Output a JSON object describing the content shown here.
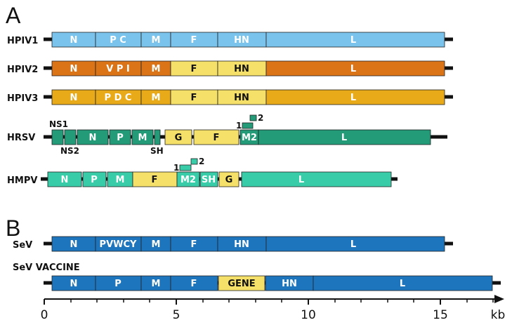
{
  "panels": [
    "A",
    "B"
  ],
  "colors": {
    "hpiv1": "#79c3ec",
    "hpiv2": "#db7417",
    "hpiv3": "#e9aa19",
    "yellow": "#f5e06a",
    "hrsv": "#239a78",
    "hmpv": "#39cca8",
    "sev": "#1c75bd"
  },
  "rows": [
    {
      "id": "hpiv1",
      "label": "HPIV1",
      "genes": [
        "N",
        "P C",
        "M",
        "F",
        "HN",
        "L"
      ]
    },
    {
      "id": "hpiv2",
      "label": "HPIV2",
      "genes": [
        "N",
        "V P I",
        "M",
        "F",
        "HN",
        "L"
      ]
    },
    {
      "id": "hpiv3",
      "label": "HPIV3",
      "genes": [
        "N",
        "P D C",
        "M",
        "F",
        "HN",
        "L"
      ]
    },
    {
      "id": "hrsv",
      "label": "HRSV",
      "genes": [
        "",
        "",
        "N",
        "P",
        "M",
        "",
        "G",
        "F",
        "M2",
        "L"
      ],
      "labels_above": [
        "NS1"
      ],
      "labels_below": [
        "NS2",
        "SH"
      ],
      "m2_orfs": [
        "1",
        "2"
      ]
    },
    {
      "id": "hmpv",
      "label": "HMPV",
      "genes": [
        "N",
        "P",
        "M",
        "F",
        "M2",
        "SH",
        "G",
        "L"
      ],
      "m2_orfs": [
        "1",
        "2"
      ]
    },
    {
      "id": "sev",
      "label": "SeV",
      "genes": [
        "N",
        "PVWCY",
        "M",
        "F",
        "HN",
        "L"
      ]
    },
    {
      "id": "sevvac",
      "label": "SeV VACCINE",
      "genes": [
        "N",
        "P",
        "M",
        "F",
        "GENE",
        "HN",
        "L"
      ]
    }
  ],
  "axis": {
    "ticks": [
      "0",
      "5",
      "10",
      "15"
    ],
    "unit": "kb"
  }
}
